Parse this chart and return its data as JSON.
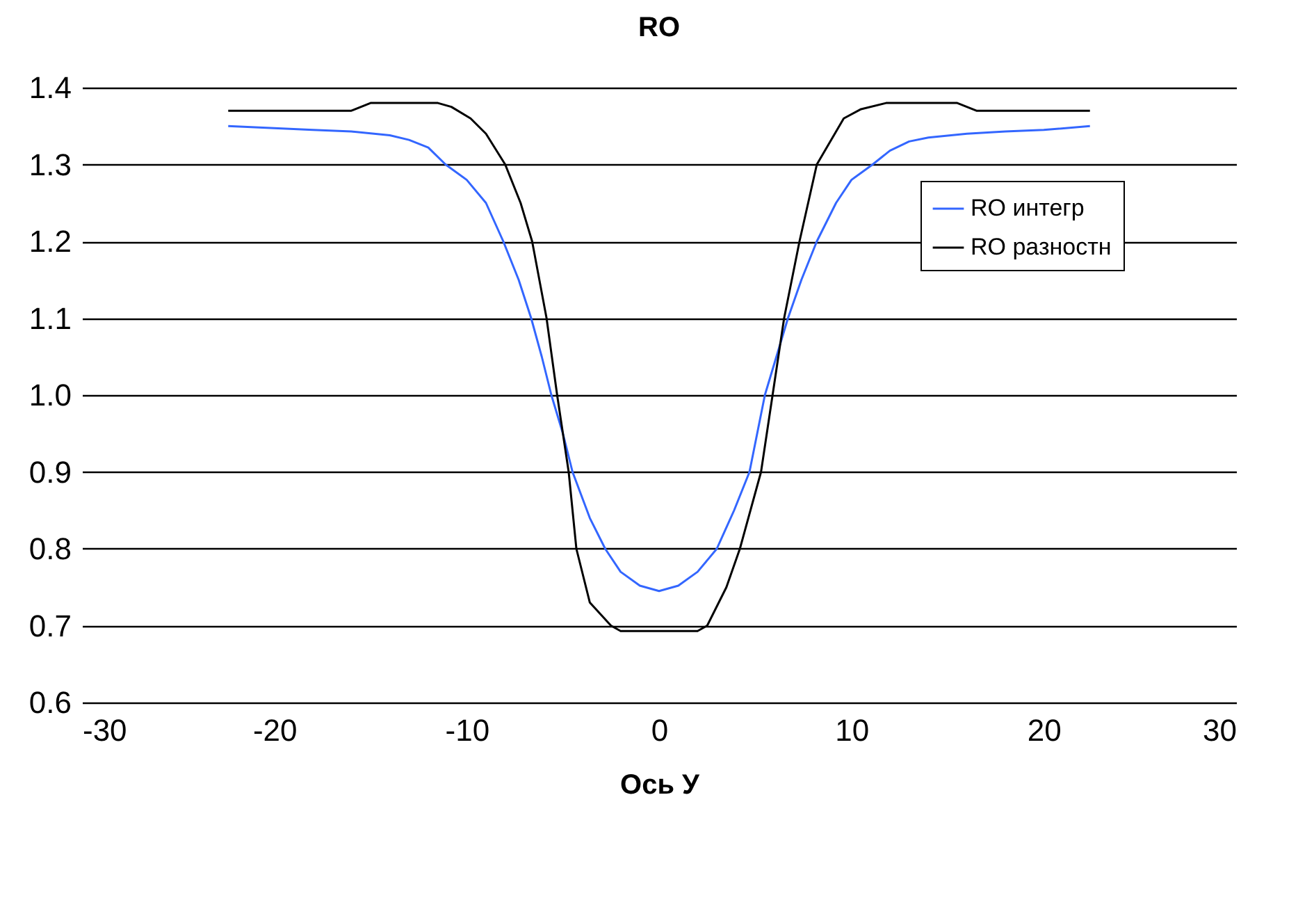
{
  "chart_data": {
    "type": "line",
    "title": "RO",
    "xlabel": "Ось  У",
    "xlim": [
      -30,
      30
    ],
    "xticks": [
      -30,
      -20,
      -10,
      0,
      10,
      20,
      30
    ],
    "ylim": [
      0.6,
      1.4
    ],
    "yticks": [
      {
        "value": 0.6,
        "label": "0.6"
      },
      {
        "value": 0.7,
        "label": "0.7"
      },
      {
        "value": 0.8,
        "label": "0.8"
      },
      {
        "value": 0.9,
        "label": "0.9"
      },
      {
        "value": 1.0,
        "label": "1.0"
      },
      {
        "value": 1.1,
        "label": "1.1"
      },
      {
        "value": 1.2,
        "label": "1.2"
      },
      {
        "value": 1.3,
        "label": "1.3"
      },
      {
        "value": 1.4,
        "label": "1.4"
      }
    ],
    "grid": "y",
    "legend": "right",
    "marker": "none",
    "line_style": "solid",
    "series": [
      {
        "name": "RO интегр",
        "color": "#3366ff",
        "x": [
          -22.4,
          -18,
          -16,
          -14,
          -13,
          -12,
          -11.1,
          -10,
          -9,
          -8.1,
          -7.3,
          -6.65,
          -6.1,
          -5.6,
          -5,
          -4.5,
          -3.6,
          -2.8,
          -2,
          -1,
          0,
          1,
          2,
          3,
          3.9,
          4.7,
          5.5,
          6.1,
          6.7,
          7.4,
          8.2,
          9.2,
          10,
          11.1,
          12,
          13,
          14,
          16,
          18,
          20,
          22.4
        ],
        "values": [
          1.35,
          1.345,
          1.343,
          1.338,
          1.332,
          1.322,
          1.3,
          1.28,
          1.25,
          1.2,
          1.15,
          1.1,
          1.05,
          1.0,
          0.95,
          0.9,
          0.84,
          0.8,
          0.77,
          0.752,
          0.745,
          0.752,
          0.77,
          0.8,
          0.85,
          0.9,
          1.0,
          1.05,
          1.1,
          1.15,
          1.2,
          1.25,
          1.28,
          1.3,
          1.318,
          1.33,
          1.335,
          1.34,
          1.343,
          1.345,
          1.35
        ]
      },
      {
        "name": "RO разностн",
        "color": "#000000",
        "x": [
          -22.4,
          -16,
          -15,
          -11.5,
          -10.8,
          -9.8,
          -9,
          -8,
          -7.2,
          -6.6,
          -5.85,
          -5.3,
          -4.7,
          -4.3,
          -3.6,
          -2.5,
          -2,
          2,
          2.5,
          3.5,
          4.2,
          5.3,
          5.9,
          6.5,
          7.3,
          8.2,
          9.6,
          10.5,
          11.8,
          15.5,
          16.5,
          22.4
        ],
        "values": [
          1.37,
          1.37,
          1.38,
          1.38,
          1.375,
          1.36,
          1.34,
          1.3,
          1.25,
          1.2,
          1.1,
          1.0,
          0.9,
          0.8,
          0.73,
          0.7,
          0.693,
          0.693,
          0.7,
          0.75,
          0.8,
          0.9,
          1.0,
          1.1,
          1.2,
          1.3,
          1.36,
          1.372,
          1.38,
          1.38,
          1.37,
          1.37
        ]
      }
    ]
  }
}
